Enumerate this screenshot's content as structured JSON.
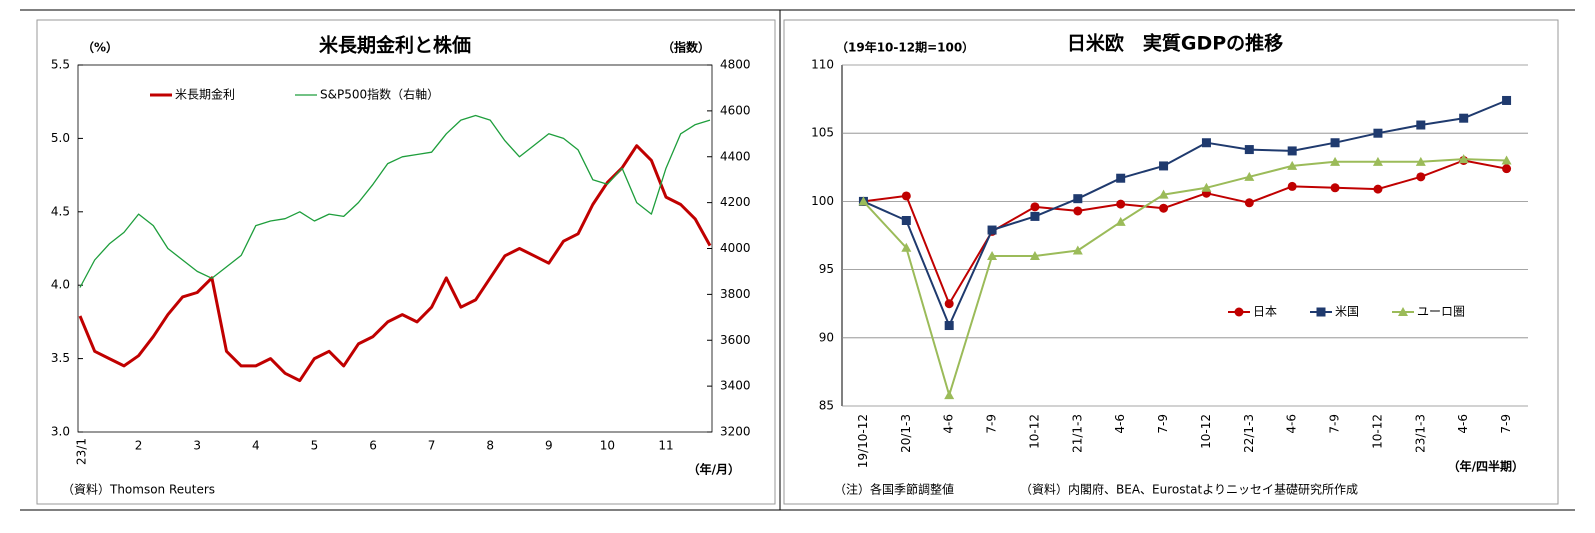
{
  "chart_data": [
    {
      "type": "line",
      "title": "米長期金利と株価",
      "y_label": "（%）",
      "y2_label": "（指数）",
      "x_label": "（年/月）",
      "source": "（資料）Thomson Reuters",
      "categories": [
        "23/1",
        null,
        null,
        null,
        "2",
        null,
        null,
        null,
        "3",
        null,
        null,
        null,
        "4",
        null,
        null,
        null,
        "5",
        null,
        null,
        null,
        "6",
        null,
        null,
        null,
        "7",
        null,
        null,
        null,
        "8",
        null,
        null,
        null,
        "9",
        null,
        null,
        null,
        "10",
        null,
        null,
        null,
        "11",
        null,
        null,
        null
      ],
      "ylim": [
        3.0,
        5.5
      ],
      "yticks": [
        {
          "value": 3.0,
          "label": "3.0"
        },
        3.5,
        {
          "value": 4.0,
          "label": "4.0"
        },
        4.5,
        {
          "value": 5.0,
          "label": "5.0"
        },
        5.5
      ],
      "y2lim": [
        3200,
        4800
      ],
      "y2ticks": [
        3200,
        3400,
        3600,
        3800,
        4000,
        4200,
        4400,
        4600,
        4800
      ],
      "grid": false,
      "legend": "top-left",
      "series": [
        {
          "name": "米長期金利",
          "color": "#c00000",
          "width": 3,
          "values": [
            3.79,
            3.55,
            3.5,
            3.45,
            3.52,
            3.65,
            3.8,
            3.92,
            3.95,
            4.05,
            3.55,
            3.45,
            3.45,
            3.5,
            3.4,
            3.35,
            3.5,
            3.55,
            3.45,
            3.6,
            3.65,
            3.75,
            3.8,
            3.75,
            3.85,
            4.05,
            3.85,
            3.9,
            4.05,
            4.2,
            4.25,
            4.2,
            4.15,
            4.3,
            4.35,
            4.55,
            4.7,
            4.8,
            4.95,
            4.85,
            4.6,
            4.55,
            4.45,
            4.27
          ]
        },
        {
          "name": "S&P500指数（右軸）",
          "color": "#1e9e3c",
          "width": 1.3,
          "axis": "y2",
          "values": [
            3830,
            3950,
            4020,
            4070,
            4150,
            4100,
            4000,
            3950,
            3900,
            3870,
            3920,
            3970,
            4100,
            4120,
            4130,
            4160,
            4120,
            4150,
            4140,
            4200,
            4280,
            4370,
            4400,
            4410,
            4420,
            4500,
            4560,
            4580,
            4560,
            4470,
            4400,
            4450,
            4500,
            4480,
            4430,
            4300,
            4280,
            4350,
            4200,
            4150,
            4350,
            4500,
            4540,
            4560
          ]
        }
      ]
    },
    {
      "type": "line",
      "title": "日米欧　実質GDPの推移",
      "y_label": "（19年10-12期=100）",
      "x_label": "（年/四半期）",
      "note": "（注）各国季節調整値",
      "source": "（資料）内閣府、BEA、Eurostatよりニッセイ基礎研究所作成",
      "categories": [
        "19/10-12",
        "20/1-3",
        "4-6",
        "7-9",
        "10-12",
        "21/1-3",
        "4-6",
        "7-9",
        "10-12",
        "22/1-3",
        "4-6",
        "7-9",
        "10-12",
        "23/1-3",
        "4-6",
        "7-9"
      ],
      "ylim": [
        85,
        110
      ],
      "yticks": [
        85,
        90,
        95,
        100,
        105,
        110
      ],
      "grid": true,
      "legend": "lower-right",
      "series": [
        {
          "name": "日本",
          "color": "#c00000",
          "marker": "circle",
          "values": [
            100,
            100.4,
            92.5,
            97.8,
            99.6,
            99.3,
            99.8,
            99.5,
            100.6,
            99.9,
            101.1,
            101.0,
            100.9,
            101.8,
            103.0,
            102.4
          ]
        },
        {
          "name": "米国",
          "color": "#1f3a6e",
          "marker": "square",
          "values": [
            100,
            98.6,
            90.9,
            97.9,
            98.9,
            100.2,
            101.7,
            102.6,
            104.3,
            103.8,
            103.7,
            104.3,
            105.0,
            105.6,
            106.1,
            107.4
          ]
        },
        {
          "name": "ユーロ圏",
          "color": "#9bbb59",
          "marker": "triangle",
          "values": [
            100,
            96.6,
            85.8,
            96.0,
            96.0,
            96.4,
            98.5,
            100.5,
            101.0,
            101.8,
            102.6,
            102.9,
            102.9,
            102.9,
            103.1,
            103.0
          ]
        }
      ]
    }
  ]
}
